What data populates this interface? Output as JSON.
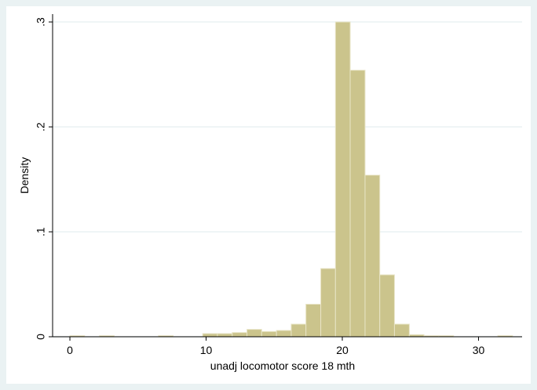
{
  "chart_data": {
    "type": "histogram",
    "xlabel": "unadj locomotor score 18 mth",
    "ylabel": "Density",
    "bins": [
      0,
      1.08,
      2.17,
      3.25,
      4.33,
      5.42,
      6.5,
      7.58,
      8.67,
      9.75,
      10.83,
      11.92,
      13,
      14.08,
      15.17,
      16.25,
      17.33,
      18.42,
      19.5,
      20.58,
      21.67,
      22.75,
      23.83,
      24.92,
      26,
      27.08,
      28.17,
      29.25,
      30.33,
      31.42,
      32.5
    ],
    "values": [
      0.001,
      0,
      0.001,
      0,
      0,
      0,
      0.001,
      0,
      0,
      0.003,
      0.003,
      0.004,
      0.007,
      0.005,
      0.006,
      0.012,
      0.031,
      0.065,
      0.3,
      0.254,
      0.154,
      0.059,
      0.012,
      0.002,
      0.001,
      0.001,
      0,
      0,
      0,
      0.001
    ],
    "color": "#cbc48c",
    "xlim": [
      -1.27,
      33.2
    ],
    "xticks": [
      0,
      10,
      20,
      30
    ],
    "ylim": [
      0,
      0.3075
    ],
    "yticks": [
      0,
      {
        "value": 0.1,
        "label": ".1"
      },
      {
        "value": 0.2,
        "label": ".2"
      },
      {
        "value": 0.3,
        "label": ".3"
      }
    ],
    "grid": true
  }
}
